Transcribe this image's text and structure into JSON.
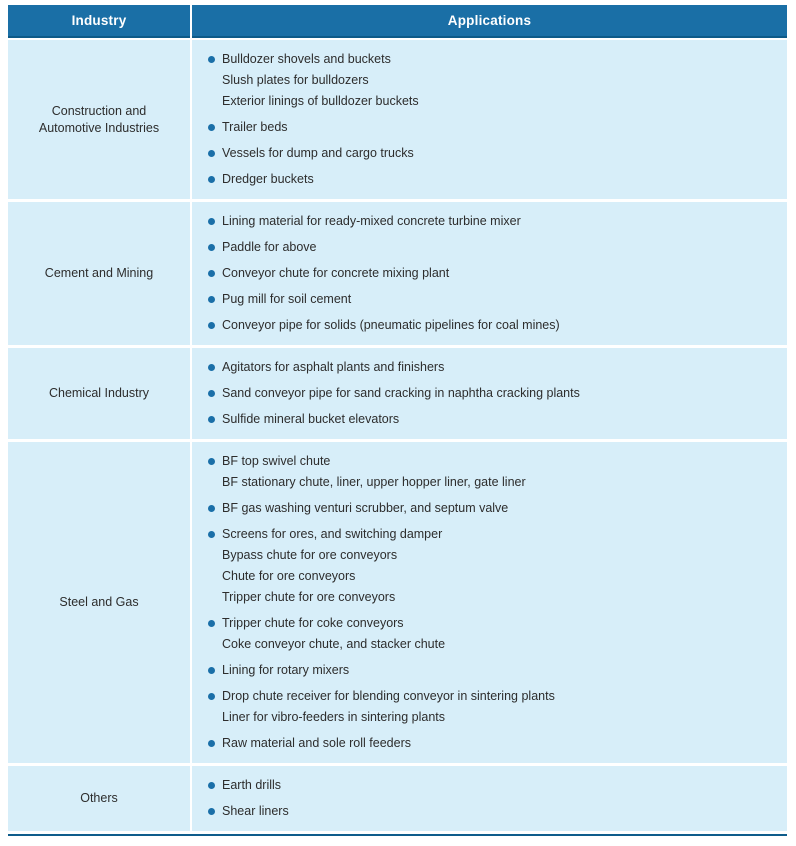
{
  "table": {
    "header": {
      "industry_label": "Industry",
      "applications_label": "Applications"
    },
    "rows": [
      {
        "industry": "Construction and Automotive Industries",
        "application_groups": [
          [
            "Bulldozer shovels and buckets",
            "Slush plates for bulldozers",
            "Exterior linings of bulldozer buckets"
          ],
          [
            "Trailer beds"
          ],
          [
            "Vessels for dump and cargo trucks"
          ],
          [
            "Dredger buckets"
          ]
        ]
      },
      {
        "industry": "Cement and Mining",
        "application_groups": [
          [
            "Lining material for ready-mixed concrete turbine mixer"
          ],
          [
            "Paddle for above"
          ],
          [
            "Conveyor chute for concrete mixing plant"
          ],
          [
            "Pug mill for soil cement"
          ],
          [
            "Conveyor pipe for solids (pneumatic pipelines for coal mines)"
          ]
        ]
      },
      {
        "industry": "Chemical Industry",
        "application_groups": [
          [
            "Agitators for asphalt plants and finishers"
          ],
          [
            "Sand conveyor pipe for sand cracking in naphtha cracking plants"
          ],
          [
            "Sulfide mineral bucket elevators"
          ]
        ]
      },
      {
        "industry": "Steel and Gas",
        "application_groups": [
          [
            "BF top swivel chute",
            "BF stationary chute, liner, upper hopper liner, gate liner"
          ],
          [
            "BF gas washing venturi scrubber, and septum valve"
          ],
          [
            "Screens for ores, and switching damper",
            "Bypass chute for ore conveyors",
            "Chute for ore conveyors",
            "Tripper chute for ore conveyors"
          ],
          [
            "Tripper chute for coke conveyors",
            "Coke conveyor chute, and stacker chute"
          ],
          [
            "Lining for rotary mixers"
          ],
          [
            "Drop chute receiver for blending conveyor in sintering plants",
            "Liner for vibro-feeders in sintering plants"
          ],
          [
            "Raw material and sole roll feeders"
          ]
        ]
      },
      {
        "industry": "Others",
        "application_groups": [
          [
            "Earth drills"
          ],
          [
            "Shear liners"
          ]
        ]
      }
    ]
  },
  "colors": {
    "header_bg": "#1a6fa6",
    "header_underline": "#0d5a88",
    "cell_bg": "#d7eef9",
    "bullet": "#1a6fa8",
    "body_text": "#2d2d2d",
    "header_text": "#ffffff",
    "bottom_rule": "#0e5c8b",
    "divider": "#ffffff"
  }
}
